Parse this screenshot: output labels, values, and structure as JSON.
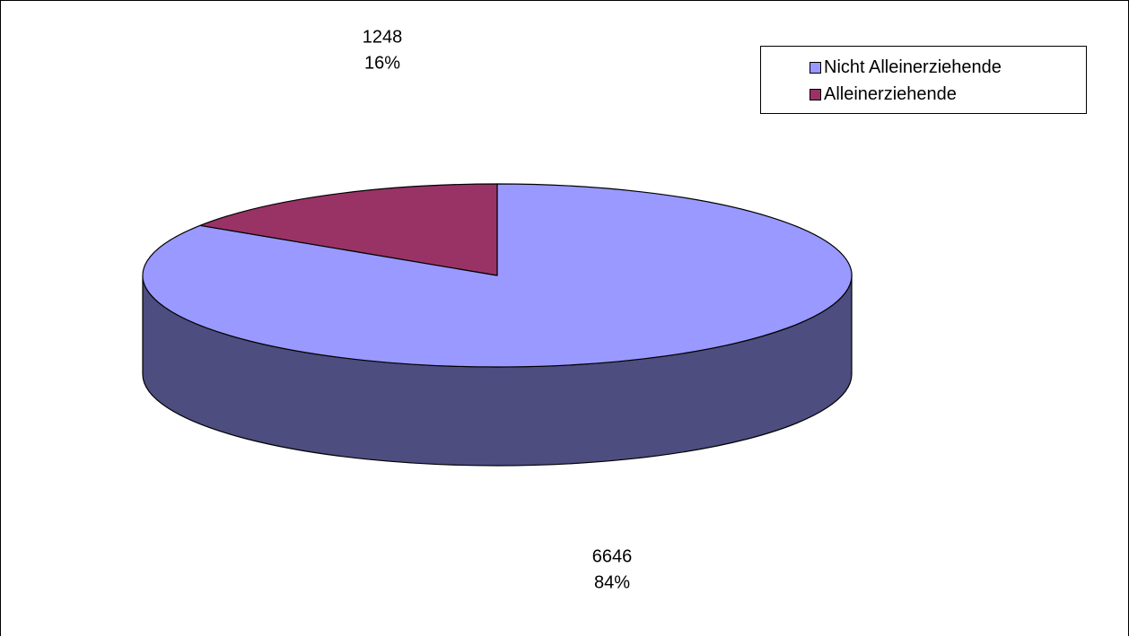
{
  "chart_data": {
    "type": "pie",
    "style": "3d",
    "categories": [
      "Nicht Alleinerziehende",
      "Alleinerziehende"
    ],
    "values": [
      6646,
      1248
    ],
    "percent_labels": [
      "84%",
      "16%"
    ],
    "colors": [
      "#9999ff",
      "#993366"
    ],
    "side_colors": [
      "#4d4d80",
      "#4d1a33"
    ],
    "legend_position": "top-right"
  }
}
